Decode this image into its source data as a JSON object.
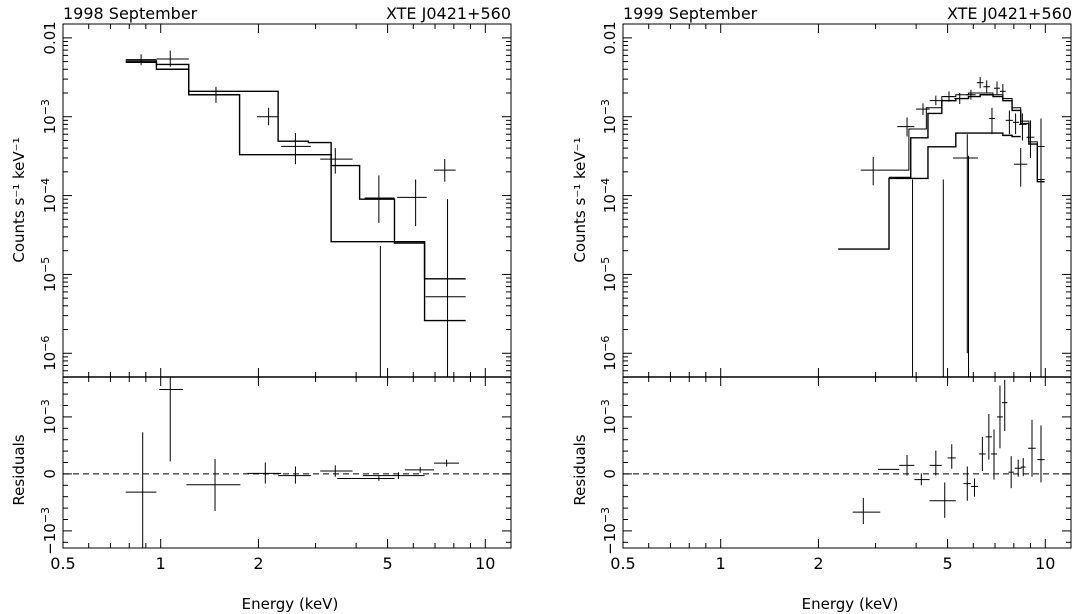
{
  "figure": {
    "panels": [
      {
        "epoch": "1998 September",
        "source": "XTE J0421+560",
        "ylabel_top": "Counts s⁻¹ keV⁻¹",
        "ylabel_bottom": "Residuals",
        "xlabel": "Energy (keV)"
      },
      {
        "epoch": "1999 September",
        "source": "XTE J0421+560",
        "ylabel_top": "Counts s⁻¹ keV⁻¹",
        "ylabel_bottom": "Residuals",
        "xlabel": "Energy (keV)"
      }
    ]
  },
  "chart_data": [
    {
      "type": "line",
      "title": "1998 September",
      "subtitle": "XTE J0421+560",
      "xlabel": "Energy (keV)",
      "ylabel": "Counts s⁻¹ keV⁻¹",
      "ylabel_residuals": "Residuals",
      "x_scale": "log",
      "y_scale": "log",
      "xlim": [
        0.5,
        12
      ],
      "ylim": [
        5e-07,
        0.015
      ],
      "residual_ylim": [
        -0.013,
        0.017
      ],
      "x_ticks": [
        {
          "v": 0.5,
          "label": "0.5"
        },
        {
          "v": 1,
          "label": "1"
        },
        {
          "v": 2,
          "label": "2"
        },
        {
          "v": 5,
          "label": "5"
        },
        {
          "v": 10,
          "label": "10"
        }
      ],
      "y_ticks": [
        {
          "v": 0.01,
          "base": "0.01",
          "exp": ""
        },
        {
          "v": 0.001,
          "base": "10",
          "exp": "−3"
        },
        {
          "v": 0.0001,
          "base": "10",
          "exp": "−4"
        },
        {
          "v": 1e-05,
          "base": "10",
          "exp": "−5"
        },
        {
          "v": 1e-06,
          "base": "10",
          "exp": "−6"
        }
      ],
      "residual_ticks": [
        {
          "v": 0.01,
          "base": "10",
          "exp": "−3",
          "prefix": ""
        },
        {
          "v": 0,
          "base": "0",
          "exp": "",
          "prefix": ""
        },
        {
          "v": -0.01,
          "base": "10",
          "exp": "−3",
          "prefix": "−"
        }
      ],
      "data": [
        {
          "x": 0.87,
          "xlo": 0.78,
          "xhi": 0.97,
          "y": 0.0053,
          "ylo": 0.0045,
          "yhi": 0.0062
        },
        {
          "x": 1.07,
          "xlo": 0.97,
          "xhi": 1.22,
          "y": 0.0054,
          "ylo": 0.0043,
          "yhi": 0.0069
        },
        {
          "x": 1.48,
          "xlo": 1.22,
          "xhi": 1.75,
          "y": 0.0019,
          "ylo": 0.0015,
          "yhi": 0.0024
        },
        {
          "x": 2.15,
          "xlo": 1.98,
          "xhi": 2.3,
          "y": 0.001,
          "ylo": 0.00078,
          "yhi": 0.0013
        },
        {
          "x": 2.6,
          "xlo": 2.35,
          "xhi": 2.9,
          "y": 0.00042,
          "ylo": 0.00025,
          "yhi": 0.00062
        },
        {
          "x": 3.45,
          "xlo": 3.1,
          "xhi": 3.9,
          "y": 0.00029,
          "ylo": 0.00019,
          "yhi": 0.0004
        },
        {
          "x": 4.7,
          "xlo": 4.25,
          "xhi": 5.25,
          "y": 9.3e-05,
          "ylo": 4.5e-05,
          "yhi": 0.00018
        },
        {
          "x": 6.1,
          "xlo": 5.35,
          "xhi": 6.6,
          "y": 9.5e-05,
          "ylo": 4.1e-05,
          "yhi": 0.00016
        },
        {
          "x": 7.5,
          "xlo": 6.95,
          "xhi": 8.1,
          "y": 0.00021,
          "ylo": 0.00015,
          "yhi": 0.00029
        },
        {
          "x": 7.65,
          "xlo": 6.55,
          "xhi": 8.7,
          "y": 5.2e-06,
          "ylo": 4.4e-07,
          "yhi": 9e-05
        }
      ],
      "extra_errorbars": [
        {
          "x": 4.75,
          "ylo": 4.4e-07,
          "yhi": 2.3e-05
        }
      ],
      "model_total": {
        "edges": [
          0.78,
          0.97,
          1.22,
          1.75,
          2.3,
          2.85,
          3.35,
          4.1,
          5.25,
          6.5,
          8.7
        ],
        "values": [
          0.0051,
          0.0046,
          0.0021,
          0.0021,
          0.00049,
          0.00047,
          0.00024,
          9e-05,
          2.5e-05,
          8.8e-06
        ]
      },
      "model_component": {
        "edges": [
          0.78,
          0.97,
          1.22,
          1.75,
          2.3,
          2.85,
          3.35,
          4.1,
          5.25,
          6.5,
          8.7
        ],
        "values": [
          0.0049,
          0.004,
          0.0019,
          0.00033,
          0.00033,
          0.00033,
          2.6e-05,
          2.6e-05,
          2.6e-05,
          2.6e-06
        ]
      },
      "residuals": [
        {
          "x": 0.88,
          "xlo": 0.78,
          "xhi": 0.97,
          "y": -0.0032,
          "ylo": -0.0135,
          "yhi": 0.0073
        },
        {
          "x": 1.07,
          "xlo": 0.99,
          "xhi": 1.17,
          "y": 0.0148,
          "ylo": 0.0022,
          "yhi": 0.0175
        },
        {
          "x": 1.47,
          "xlo": 1.2,
          "xhi": 1.76,
          "y": -0.0019,
          "ylo": -0.0065,
          "yhi": 0.0026
        },
        {
          "x": 2.1,
          "xlo": 1.85,
          "xhi": 2.35,
          "y": 0.0001,
          "ylo": -0.0017,
          "yhi": 0.002
        },
        {
          "x": 2.6,
          "xlo": 2.3,
          "xhi": 2.9,
          "y": -0.0003,
          "ylo": -0.0017,
          "yhi": 0.0013
        },
        {
          "x": 3.45,
          "xlo": 3.1,
          "xhi": 3.9,
          "y": 0.0005,
          "ylo": -0.0005,
          "yhi": 0.0015
        },
        {
          "x": 4.7,
          "xlo": 3.5,
          "xhi": 5.25,
          "y": -0.0008,
          "ylo": -0.0012,
          "yhi": -0.0004
        },
        {
          "x": 5.4,
          "xlo": 4.2,
          "xhi": 6.5,
          "y": -0.0003,
          "ylo": -0.0009,
          "yhi": 0.0003
        },
        {
          "x": 6.3,
          "xlo": 5.65,
          "xhi": 6.95,
          "y": 0.0007,
          "ylo": 0.0002,
          "yhi": 0.0012
        },
        {
          "x": 7.6,
          "xlo": 6.95,
          "xhi": 8.3,
          "y": 0.0019,
          "ylo": 0.0013,
          "yhi": 0.0025
        }
      ]
    },
    {
      "type": "line",
      "title": "1999 September",
      "subtitle": "XTE J0421+560",
      "xlabel": "Energy (keV)",
      "ylabel": "Counts s⁻¹ keV⁻¹",
      "ylabel_residuals": "Residuals",
      "x_scale": "log",
      "y_scale": "log",
      "xlim": [
        0.5,
        12
      ],
      "ylim": [
        5e-07,
        0.015
      ],
      "residual_ylim": [
        -0.013,
        0.017
      ],
      "x_ticks": [
        {
          "v": 0.5,
          "label": "0.5"
        },
        {
          "v": 1,
          "label": "1"
        },
        {
          "v": 2,
          "label": "2"
        },
        {
          "v": 5,
          "label": "5"
        },
        {
          "v": 10,
          "label": "10"
        }
      ],
      "y_ticks": [
        {
          "v": 0.01,
          "base": "0.01",
          "exp": ""
        },
        {
          "v": 0.001,
          "base": "10",
          "exp": "−3"
        },
        {
          "v": 0.0001,
          "base": "10",
          "exp": "−4"
        },
        {
          "v": 1e-05,
          "base": "10",
          "exp": "−5"
        },
        {
          "v": 1e-06,
          "base": "10",
          "exp": "−6"
        }
      ],
      "residual_ticks": [
        {
          "v": 0.01,
          "base": "10",
          "exp": "−3",
          "prefix": ""
        },
        {
          "v": 0,
          "base": "0",
          "exp": "",
          "prefix": ""
        },
        {
          "v": -0.01,
          "base": "10",
          "exp": "−3",
          "prefix": "−"
        }
      ],
      "data": [
        {
          "x": 2.95,
          "xlo": 2.7,
          "xhi": 3.3,
          "y": 0.00021,
          "ylo": 0.000135,
          "yhi": 0.00031
        },
        {
          "x": 3.75,
          "xlo": 3.5,
          "xhi": 3.95,
          "y": 0.00075,
          "ylo": 0.00056,
          "yhi": 0.00098
        },
        {
          "x": 4.2,
          "xlo": 4.0,
          "xhi": 4.4,
          "y": 0.00125,
          "ylo": 0.00105,
          "yhi": 0.00148
        },
        {
          "x": 4.6,
          "xlo": 4.4,
          "xhi": 4.8,
          "y": 0.0016,
          "ylo": 0.0014,
          "yhi": 0.00185
        },
        {
          "x": 5.05,
          "xlo": 4.85,
          "xhi": 5.25,
          "y": 0.0018,
          "ylo": 0.00155,
          "yhi": 0.0021
        },
        {
          "x": 5.45,
          "xlo": 5.25,
          "xhi": 5.65,
          "y": 0.0017,
          "ylo": 0.00145,
          "yhi": 0.002
        },
        {
          "x": 5.75,
          "xlo": 5.2,
          "xhi": 6.2,
          "y": 0.0003,
          "ylo": 1e-06,
          "yhi": 0.0006
        },
        {
          "x": 5.9,
          "xlo": 5.7,
          "xhi": 6.1,
          "y": 0.0019,
          "ylo": 0.00165,
          "yhi": 0.0022
        },
        {
          "x": 6.3,
          "xlo": 6.15,
          "xhi": 6.45,
          "y": 0.0027,
          "ylo": 0.0023,
          "yhi": 0.0032
        },
        {
          "x": 6.6,
          "xlo": 6.45,
          "xhi": 6.75,
          "y": 0.0024,
          "ylo": 0.002,
          "yhi": 0.0029
        },
        {
          "x": 6.85,
          "xlo": 6.7,
          "xhi": 7.0,
          "y": 0.00095,
          "ylo": 0.0006,
          "yhi": 0.0013
        },
        {
          "x": 7.1,
          "xlo": 6.95,
          "xhi": 7.25,
          "y": 0.0023,
          "ylo": 0.0019,
          "yhi": 0.0028
        },
        {
          "x": 7.4,
          "xlo": 7.25,
          "xhi": 7.55,
          "y": 0.0021,
          "ylo": 0.0017,
          "yhi": 0.0026
        },
        {
          "x": 7.75,
          "xlo": 7.55,
          "xhi": 7.95,
          "y": 0.0009,
          "ylo": 0.0006,
          "yhi": 0.0012
        },
        {
          "x": 8.1,
          "xlo": 7.95,
          "xhi": 8.3,
          "y": 0.00085,
          "ylo": 0.0006,
          "yhi": 0.0011
        },
        {
          "x": 8.5,
          "xlo": 8.3,
          "xhi": 8.75,
          "y": 0.0008,
          "ylo": 0.0005,
          "yhi": 0.0011
        },
        {
          "x": 8.4,
          "xlo": 8.0,
          "xhi": 8.8,
          "y": 0.00025,
          "ylo": 0.00013,
          "yhi": 0.0004
        },
        {
          "x": 9.0,
          "xlo": 8.75,
          "xhi": 9.25,
          "y": 0.00055,
          "ylo": 0.0003,
          "yhi": 0.0009
        },
        {
          "x": 9.7,
          "xlo": 9.45,
          "xhi": 9.95,
          "y": 0.00042,
          "ylo": 0.00014,
          "yhi": 0.00095
        }
      ],
      "extra_errorbars": [
        {
          "x": 3.9,
          "ylo": 5e-07,
          "yhi": 0.00016
        },
        {
          "x": 4.85,
          "ylo": 5e-07,
          "yhi": 0.00016
        },
        {
          "x": 5.8,
          "ylo": 5e-07,
          "yhi": 0.00032
        },
        {
          "x": 9.7,
          "ylo": 5e-07,
          "yhi": 0.00014
        }
      ],
      "model_total": {
        "edges": [
          3.3,
          3.85,
          4.35,
          4.8,
          5.3,
          5.8,
          6.3,
          6.9,
          7.4,
          7.9,
          8.4,
          8.9,
          9.45,
          9.95
        ],
        "values": [
          0.00017,
          0.00054,
          0.0011,
          0.0016,
          0.0017,
          0.0018,
          0.0019,
          0.0018,
          0.0016,
          0.0012,
          0.00082,
          0.00045,
          0.00015
        ]
      },
      "model_total_outer": {
        "edges": [
          3.3,
          3.8,
          4.3,
          4.8,
          5.3,
          5.8,
          6.3,
          6.9,
          7.4,
          7.9,
          8.4,
          8.9,
          9.45,
          9.95
        ],
        "values": [
          0.00021,
          0.0007,
          0.0013,
          0.0018,
          0.0019,
          0.002,
          0.002,
          0.0019,
          0.0017,
          0.0013,
          0.00088,
          0.00048,
          0.00016
        ]
      },
      "model_component": {
        "edges": [
          2.3,
          3.3,
          3.85,
          4.35,
          4.8,
          5.3,
          5.8,
          6.3,
          6.9,
          7.4,
          7.9,
          8.4
        ],
        "values": [
          2.1e-05,
          0.000165,
          0.000165,
          0.000415,
          0.000415,
          0.00062,
          0.00062,
          0.00062,
          0.00062,
          0.00058,
          0.00056
        ]
      },
      "residuals": [
        {
          "x": 2.75,
          "xlo": 2.55,
          "xhi": 3.1,
          "y": -0.0067,
          "ylo": -0.0088,
          "yhi": -0.0042
        },
        {
          "x": 3.3,
          "xlo": 3.05,
          "xhi": 3.55,
          "y": 0.0008,
          "ylo": 0.0008,
          "yhi": 0.0008
        },
        {
          "x": 3.75,
          "xlo": 3.55,
          "xhi": 3.95,
          "y": 0.0015,
          "ylo": -0.0003,
          "yhi": 0.0033
        },
        {
          "x": 4.15,
          "xlo": 3.95,
          "xhi": 4.4,
          "y": -0.001,
          "ylo": -0.002,
          "yhi": 0.0001
        },
        {
          "x": 4.6,
          "xlo": 4.4,
          "xhi": 4.8,
          "y": 0.0015,
          "ylo": -0.0003,
          "yhi": 0.0041
        },
        {
          "x": 4.9,
          "xlo": 4.4,
          "xhi": 5.3,
          "y": -0.0047,
          "ylo": -0.0077,
          "yhi": -0.0015
        },
        {
          "x": 5.15,
          "xlo": 5.0,
          "xhi": 5.3,
          "y": 0.0028,
          "ylo": 0.0009,
          "yhi": 0.0052
        },
        {
          "x": 5.75,
          "xlo": 5.6,
          "xhi": 5.9,
          "y": -0.0017,
          "ylo": -0.0047,
          "yhi": 0.0013
        },
        {
          "x": 6.05,
          "xlo": 5.9,
          "xhi": 6.2,
          "y": -0.0022,
          "ylo": -0.004,
          "yhi": -0.0008
        },
        {
          "x": 6.4,
          "xlo": 6.25,
          "xhi": 6.55,
          "y": 0.0035,
          "ylo": 0.0005,
          "yhi": 0.0065
        },
        {
          "x": 6.7,
          "xlo": 6.55,
          "xhi": 6.85,
          "y": 0.0065,
          "ylo": 0.0025,
          "yhi": 0.0105
        },
        {
          "x": 6.95,
          "xlo": 6.8,
          "xhi": 7.1,
          "y": 0.0035,
          "ylo": -0.001,
          "yhi": 0.0078
        },
        {
          "x": 7.25,
          "xlo": 7.1,
          "xhi": 7.4,
          "y": 0.01,
          "ylo": 0.0045,
          "yhi": 0.0155
        },
        {
          "x": 7.5,
          "xlo": 7.35,
          "xhi": 7.65,
          "y": 0.0125,
          "ylo": 0.0075,
          "yhi": 0.0165
        },
        {
          "x": 7.85,
          "xlo": 7.7,
          "xhi": 8.0,
          "y": 0.0003,
          "ylo": -0.0025,
          "yhi": 0.0031
        },
        {
          "x": 8.25,
          "xlo": 8.05,
          "xhi": 8.45,
          "y": 0.001,
          "ylo": -0.0005,
          "yhi": 0.0025
        },
        {
          "x": 8.55,
          "xlo": 8.4,
          "xhi": 8.7,
          "y": 0.0012,
          "ylo": -0.0004,
          "yhi": 0.0028
        },
        {
          "x": 9.1,
          "xlo": 8.85,
          "xhi": 9.35,
          "y": 0.0045,
          "ylo": -0.0005,
          "yhi": 0.0095
        },
        {
          "x": 9.7,
          "xlo": 9.45,
          "xhi": 9.95,
          "y": 0.0025,
          "ylo": -0.0015,
          "yhi": 0.0085
        }
      ]
    }
  ]
}
